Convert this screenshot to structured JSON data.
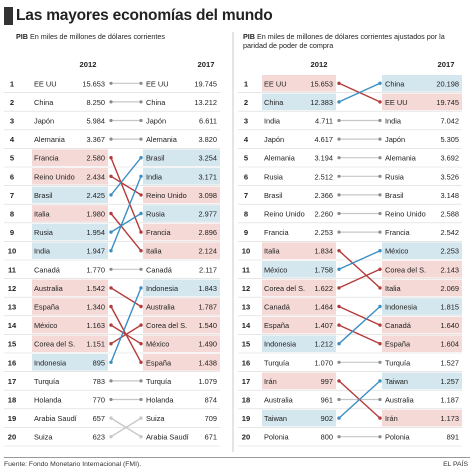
{
  "header": {
    "title": "Las mayores economías del mundo"
  },
  "colors": {
    "pink": "#f4d9d6",
    "blue": "#d4e6ee",
    "line_red": "#b53a3a",
    "line_blue": "#3a8fc4",
    "line_gray": "#c7c7c7",
    "row_border": "#d8d8d8"
  },
  "chart_data": [
    {
      "type": "table",
      "prefix": "PIB",
      "subtitle": "En miles de millones de dólares corrientes",
      "year_left": "2012",
      "year_right": "2017",
      "ranks": [
        "1",
        "2",
        "3",
        "4",
        "5",
        "6",
        "7",
        "8",
        "9",
        "10",
        "11",
        "12",
        "13",
        "14",
        "15",
        "16",
        "17",
        "18",
        "19",
        "20"
      ],
      "left": [
        {
          "country": "EE UU",
          "value": "15.653",
          "hl": ""
        },
        {
          "country": "China",
          "value": "8.250",
          "hl": ""
        },
        {
          "country": "Japón",
          "value": "5.984",
          "hl": ""
        },
        {
          "country": "Alemania",
          "value": "3.367",
          "hl": ""
        },
        {
          "country": "Francia",
          "value": "2.580",
          "hl": "pink"
        },
        {
          "country": "Reino Unido",
          "value": "2.434",
          "hl": "pink"
        },
        {
          "country": "Brasil",
          "value": "2.425",
          "hl": "blue"
        },
        {
          "country": "Italia",
          "value": "1.980",
          "hl": "pink"
        },
        {
          "country": "Rusia",
          "value": "1.954",
          "hl": "blue"
        },
        {
          "country": "India",
          "value": "1.947",
          "hl": "blue"
        },
        {
          "country": "Canadá",
          "value": "1.770",
          "hl": ""
        },
        {
          "country": "Australia",
          "value": "1.542",
          "hl": "pink"
        },
        {
          "country": "España",
          "value": "1.340",
          "hl": "pink"
        },
        {
          "country": "México",
          "value": "1.163",
          "hl": "pink"
        },
        {
          "country": "Corea del S.",
          "value": "1.151",
          "hl": "pink"
        },
        {
          "country": "Indonesia",
          "value": "895",
          "hl": "blue"
        },
        {
          "country": "Turquía",
          "value": "783",
          "hl": ""
        },
        {
          "country": "Holanda",
          "value": "770",
          "hl": ""
        },
        {
          "country": "Arabia Saudí",
          "value": "657",
          "hl": ""
        },
        {
          "country": "Suiza",
          "value": "623",
          "hl": ""
        }
      ],
      "right": [
        {
          "country": "EE UU",
          "value": "19.745",
          "hl": ""
        },
        {
          "country": "China",
          "value": "13.212",
          "hl": ""
        },
        {
          "country": "Japón",
          "value": "6.611",
          "hl": ""
        },
        {
          "country": "Alemania",
          "value": "3.820",
          "hl": ""
        },
        {
          "country": "Brasil",
          "value": "3.254",
          "hl": "blue"
        },
        {
          "country": "India",
          "value": "3.171",
          "hl": "blue"
        },
        {
          "country": "Reino Unido",
          "value": "3.098",
          "hl": "pink"
        },
        {
          "country": "Rusia",
          "value": "2.977",
          "hl": "blue"
        },
        {
          "country": "Francia",
          "value": "2.896",
          "hl": "pink"
        },
        {
          "country": "Italia",
          "value": "2.124",
          "hl": "pink"
        },
        {
          "country": "Canadá",
          "value": "2.117",
          "hl": ""
        },
        {
          "country": "Indonesia",
          "value": "1.843",
          "hl": "blue"
        },
        {
          "country": "Australia",
          "value": "1.787",
          "hl": "pink"
        },
        {
          "country": "Corea del S.",
          "value": "1.540",
          "hl": "pink"
        },
        {
          "country": "México",
          "value": "1.490",
          "hl": "pink"
        },
        {
          "country": "España",
          "value": "1.438",
          "hl": "pink"
        },
        {
          "country": "Turquía",
          "value": "1.079",
          "hl": ""
        },
        {
          "country": "Holanda",
          "value": "874",
          "hl": ""
        },
        {
          "country": "Suiza",
          "value": "709",
          "hl": ""
        },
        {
          "country": "Arabia Saudí",
          "value": "671",
          "hl": ""
        }
      ],
      "links": [
        {
          "from": 5,
          "to": 9,
          "color": "red"
        },
        {
          "from": 6,
          "to": 7,
          "color": "red"
        },
        {
          "from": 7,
          "to": 5,
          "color": "blue"
        },
        {
          "from": 8,
          "to": 10,
          "color": "red"
        },
        {
          "from": 9,
          "to": 8,
          "color": "blue"
        },
        {
          "from": 10,
          "to": 6,
          "color": "blue"
        },
        {
          "from": 12,
          "to": 13,
          "color": "red"
        },
        {
          "from": 13,
          "to": 16,
          "color": "red"
        },
        {
          "from": 14,
          "to": 15,
          "color": "red"
        },
        {
          "from": 15,
          "to": 14,
          "color": "red"
        },
        {
          "from": 16,
          "to": 12,
          "color": "blue"
        },
        {
          "from": 19,
          "to": 20,
          "color": "gray"
        },
        {
          "from": 20,
          "to": 19,
          "color": "gray"
        }
      ]
    },
    {
      "type": "table",
      "prefix": "PIB",
      "subtitle": "En miles de millones de dólares corrientes ajustados por la paridad de poder de compra",
      "year_left": "2012",
      "year_right": "2017",
      "ranks": [
        "1",
        "2",
        "3",
        "4",
        "5",
        "6",
        "7",
        "8",
        "9",
        "10",
        "11",
        "12",
        "13",
        "14",
        "15",
        "16",
        "17",
        "18",
        "19",
        "20"
      ],
      "left": [
        {
          "country": "EE UU",
          "value": "15.653",
          "hl": "pink"
        },
        {
          "country": "China",
          "value": "12.383",
          "hl": "blue"
        },
        {
          "country": "India",
          "value": "4.711",
          "hl": ""
        },
        {
          "country": "Japón",
          "value": "4.617",
          "hl": ""
        },
        {
          "country": "Alemania",
          "value": "3.194",
          "hl": ""
        },
        {
          "country": "Rusia",
          "value": "2.512",
          "hl": ""
        },
        {
          "country": "Brasil",
          "value": "2.366",
          "hl": ""
        },
        {
          "country": "Reino Unido",
          "value": "2.260",
          "hl": ""
        },
        {
          "country": "Francia",
          "value": "2.253",
          "hl": ""
        },
        {
          "country": "Italia",
          "value": "1.834",
          "hl": "pink"
        },
        {
          "country": "México",
          "value": "1.758",
          "hl": "blue"
        },
        {
          "country": "Corea del S.",
          "value": "1.622",
          "hl": "pink"
        },
        {
          "country": "Canadá",
          "value": "1.464",
          "hl": "pink"
        },
        {
          "country": "España",
          "value": "1.407",
          "hl": "pink"
        },
        {
          "country": "Indonesia",
          "value": "1.212",
          "hl": "blue"
        },
        {
          "country": "Turquía",
          "value": "1.070",
          "hl": ""
        },
        {
          "country": "Irán",
          "value": "997",
          "hl": "pink"
        },
        {
          "country": "Australia",
          "value": "961",
          "hl": ""
        },
        {
          "country": "Taiwan",
          "value": "902",
          "hl": "blue"
        },
        {
          "country": "Polonia",
          "value": "800",
          "hl": ""
        }
      ],
      "right": [
        {
          "country": "China",
          "value": "20.198",
          "hl": "blue"
        },
        {
          "country": "EE UU",
          "value": "19.745",
          "hl": "pink"
        },
        {
          "country": "India",
          "value": "7.042",
          "hl": ""
        },
        {
          "country": "Japón",
          "value": "5.305",
          "hl": ""
        },
        {
          "country": "Alemania",
          "value": "3.692",
          "hl": ""
        },
        {
          "country": "Rusia",
          "value": "3.526",
          "hl": ""
        },
        {
          "country": "Brasil",
          "value": "3.148",
          "hl": ""
        },
        {
          "country": "Reino Unido",
          "value": "2.588",
          "hl": ""
        },
        {
          "country": "Francia",
          "value": "2.542",
          "hl": ""
        },
        {
          "country": "México",
          "value": "2.253",
          "hl": "blue"
        },
        {
          "country": "Corea del S.",
          "value": "2.143",
          "hl": "pink"
        },
        {
          "country": "Italia",
          "value": "2.069",
          "hl": "pink"
        },
        {
          "country": "Indonesia",
          "value": "1.815",
          "hl": "blue"
        },
        {
          "country": "Canadá",
          "value": "1.640",
          "hl": "pink"
        },
        {
          "country": "España",
          "value": "1.604",
          "hl": "pink"
        },
        {
          "country": "Turquía",
          "value": "1.527",
          "hl": ""
        },
        {
          "country": "Taiwan",
          "value": "1.257",
          "hl": "blue"
        },
        {
          "country": "Australia",
          "value": "1.187",
          "hl": ""
        },
        {
          "country": "Irán",
          "value": "1.173",
          "hl": "pink"
        },
        {
          "country": "Polonia",
          "value": "891",
          "hl": ""
        }
      ],
      "links": [
        {
          "from": 1,
          "to": 2,
          "color": "red"
        },
        {
          "from": 2,
          "to": 1,
          "color": "blue"
        },
        {
          "from": 10,
          "to": 12,
          "color": "red"
        },
        {
          "from": 11,
          "to": 10,
          "color": "blue"
        },
        {
          "from": 12,
          "to": 11,
          "color": "red"
        },
        {
          "from": 13,
          "to": 14,
          "color": "red"
        },
        {
          "from": 14,
          "to": 15,
          "color": "red"
        },
        {
          "from": 15,
          "to": 13,
          "color": "blue"
        },
        {
          "from": 17,
          "to": 19,
          "color": "red"
        },
        {
          "from": 19,
          "to": 17,
          "color": "blue"
        }
      ]
    }
  ],
  "footer": {
    "source": "Fuente: Fondo Monetario Internacional (FMI).",
    "brand": "EL PAÍS"
  }
}
